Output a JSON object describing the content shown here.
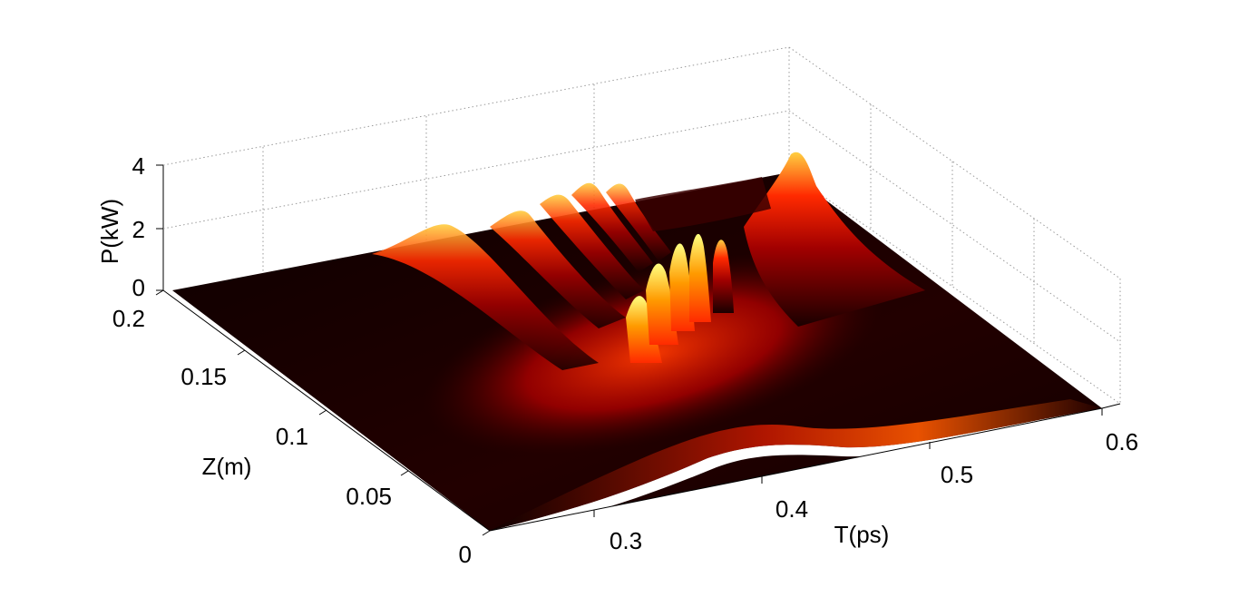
{
  "chart_data": {
    "type": "surface",
    "xlabel": "T(ps)",
    "ylabel": "Z(m)",
    "zlabel": "P(kW)",
    "xlim": [
      0.25,
      0.6
    ],
    "ylim": [
      0,
      0.2
    ],
    "zlim": [
      0,
      4
    ],
    "x_ticks": [
      "0.3",
      "0.4",
      "0.5",
      "0.6"
    ],
    "y_ticks": [
      "0",
      "0.05",
      "0.1",
      "0.15",
      "0.2"
    ],
    "z_ticks": [
      "0",
      "2",
      "4"
    ],
    "grid": true,
    "colormap": "hot",
    "colormap_stops": [
      "#0d0000",
      "#4a0000",
      "#a10000",
      "#ff1a00",
      "#ff7a00",
      "#ffd200",
      "#ffff66"
    ],
    "series": [
      {
        "peak_z_m": 0.0,
        "peak_t_ps": 0.42,
        "peak_power_kw": 0.45
      },
      {
        "peak_z_m": 0.05,
        "peak_t_ps": 0.39,
        "peak_power_kw": 1.4
      },
      {
        "peak_z_m": 0.1,
        "peak_t_ps": 0.35,
        "peak_power_kw": 2.2
      },
      {
        "peak_z_m": 0.12,
        "peak_t_ps": 0.345,
        "peak_power_kw": 2.9
      },
      {
        "peak_z_m": 0.15,
        "peak_t_ps": 0.365,
        "peak_power_kw": 3.0
      },
      {
        "peak_z_m": 0.18,
        "peak_t_ps": 0.42,
        "peak_power_kw": 2.0
      },
      {
        "peak_z_m": 0.2,
        "peak_t_ps": 0.5,
        "peak_power_kw": 3.2
      }
    ]
  }
}
